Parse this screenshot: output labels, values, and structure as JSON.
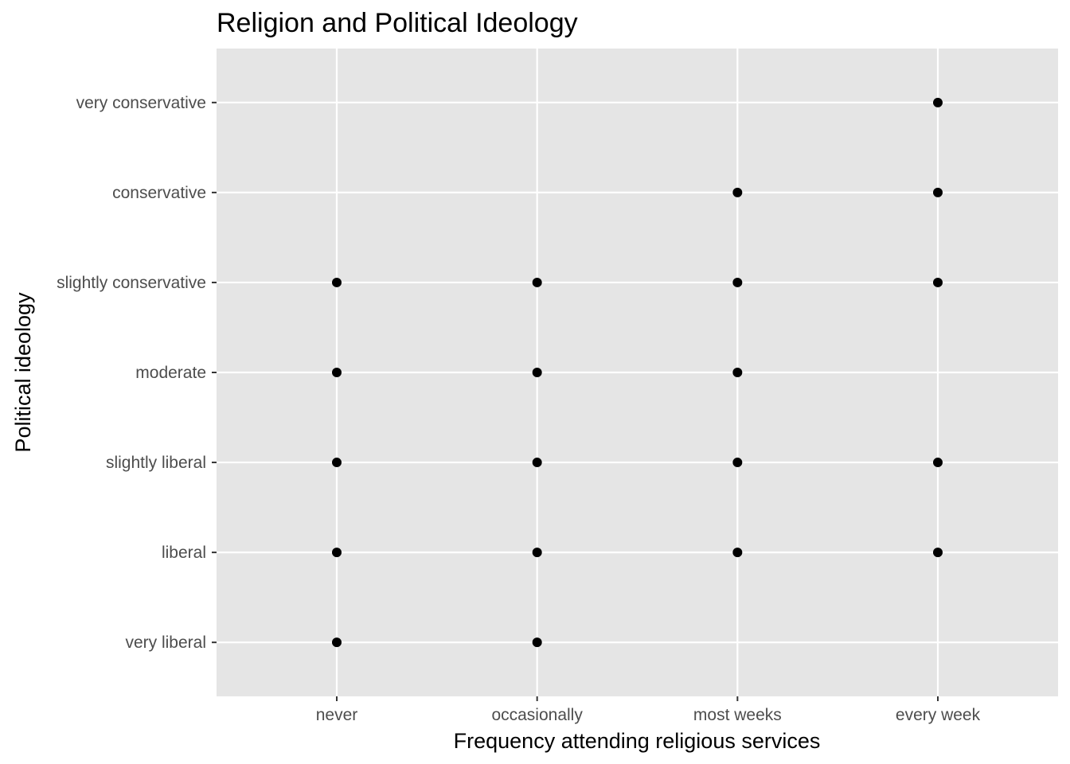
{
  "chart_data": {
    "type": "scatter",
    "title": "Religion and Political Ideology",
    "xlabel": "Frequency attending religious services",
    "ylabel": "Political ideology",
    "x_categories": [
      "never",
      "occasionally",
      "most weeks",
      "every week"
    ],
    "y_categories": [
      "very liberal",
      "liberal",
      "slightly liberal",
      "moderate",
      "slightly conservative",
      "conservative",
      "very conservative"
    ],
    "points": [
      {
        "x": "never",
        "y": "very liberal"
      },
      {
        "x": "never",
        "y": "liberal"
      },
      {
        "x": "never",
        "y": "slightly liberal"
      },
      {
        "x": "never",
        "y": "moderate"
      },
      {
        "x": "never",
        "y": "slightly conservative"
      },
      {
        "x": "occasionally",
        "y": "very liberal"
      },
      {
        "x": "occasionally",
        "y": "liberal"
      },
      {
        "x": "occasionally",
        "y": "slightly liberal"
      },
      {
        "x": "occasionally",
        "y": "moderate"
      },
      {
        "x": "occasionally",
        "y": "slightly conservative"
      },
      {
        "x": "most weeks",
        "y": "liberal"
      },
      {
        "x": "most weeks",
        "y": "slightly liberal"
      },
      {
        "x": "most weeks",
        "y": "moderate"
      },
      {
        "x": "most weeks",
        "y": "slightly conservative"
      },
      {
        "x": "most weeks",
        "y": "conservative"
      },
      {
        "x": "every week",
        "y": "liberal"
      },
      {
        "x": "every week",
        "y": "slightly liberal"
      },
      {
        "x": "every week",
        "y": "slightly conservative"
      },
      {
        "x": "every week",
        "y": "conservative"
      },
      {
        "x": "every week",
        "y": "very conservative"
      }
    ],
    "grid": true,
    "legend": "none",
    "colors": {
      "panel_background": "#e5e5e5",
      "grid": "#ffffff",
      "point": "#000000",
      "tick_label": "#4d4d4d",
      "tick_mark": "#333333"
    }
  }
}
